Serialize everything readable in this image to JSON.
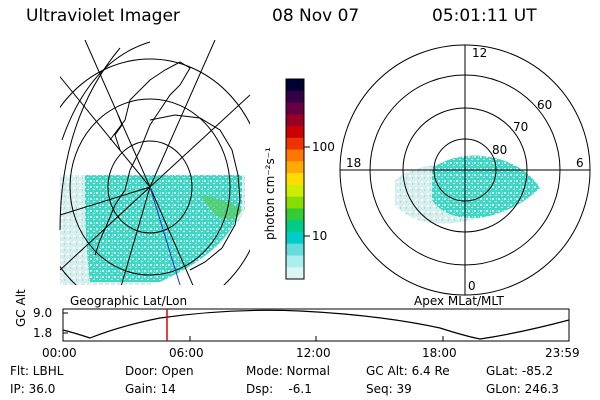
{
  "header": {
    "instrument": "Ultraviolet Imager",
    "date": "08 Nov 07",
    "time": "05:01:11 UT"
  },
  "colorbar": {
    "unit_label": "photon cm⁻²s⁻¹",
    "ticks": [
      "100",
      "10"
    ],
    "colors": [
      "#000033",
      "#330044",
      "#660044",
      "#990022",
      "#cc0000",
      "#ee3300",
      "#ff7700",
      "#ffaa00",
      "#ffdd00",
      "#ccee00",
      "#88dd00",
      "#33cc33",
      "#00cc88",
      "#00cccc",
      "#66dddd",
      "#aaeeee",
      "#ddf4f4"
    ]
  },
  "left_panel": {
    "label": "Geographic Lat/Lon"
  },
  "right_panel": {
    "label": "Apex MLat/MLT",
    "mlt_labels": [
      "12",
      "18",
      "6",
      "0"
    ],
    "lat_labels": [
      "60",
      "70",
      "80"
    ]
  },
  "timeline": {
    "ylabel": "GC Alt",
    "y_ticks": [
      "9.0",
      "1.8"
    ],
    "x_ticks": [
      "00:00",
      "06:00",
      "12:00",
      "18:00",
      "23:59"
    ],
    "marker_color": "#dd0000"
  },
  "info": {
    "flt": "Flt: LBHL",
    "ip": "IP: 36.0",
    "door": "Door: Open",
    "gain": "Gain: 14",
    "mode": "Mode: Normal",
    "dsp": "Dsp:    -6.1",
    "gcalt": "GC Alt: 6.4 Re",
    "seq": "Seq: 39",
    "glat": "GLat: -85.2",
    "glon": "GLon: 246.3"
  }
}
